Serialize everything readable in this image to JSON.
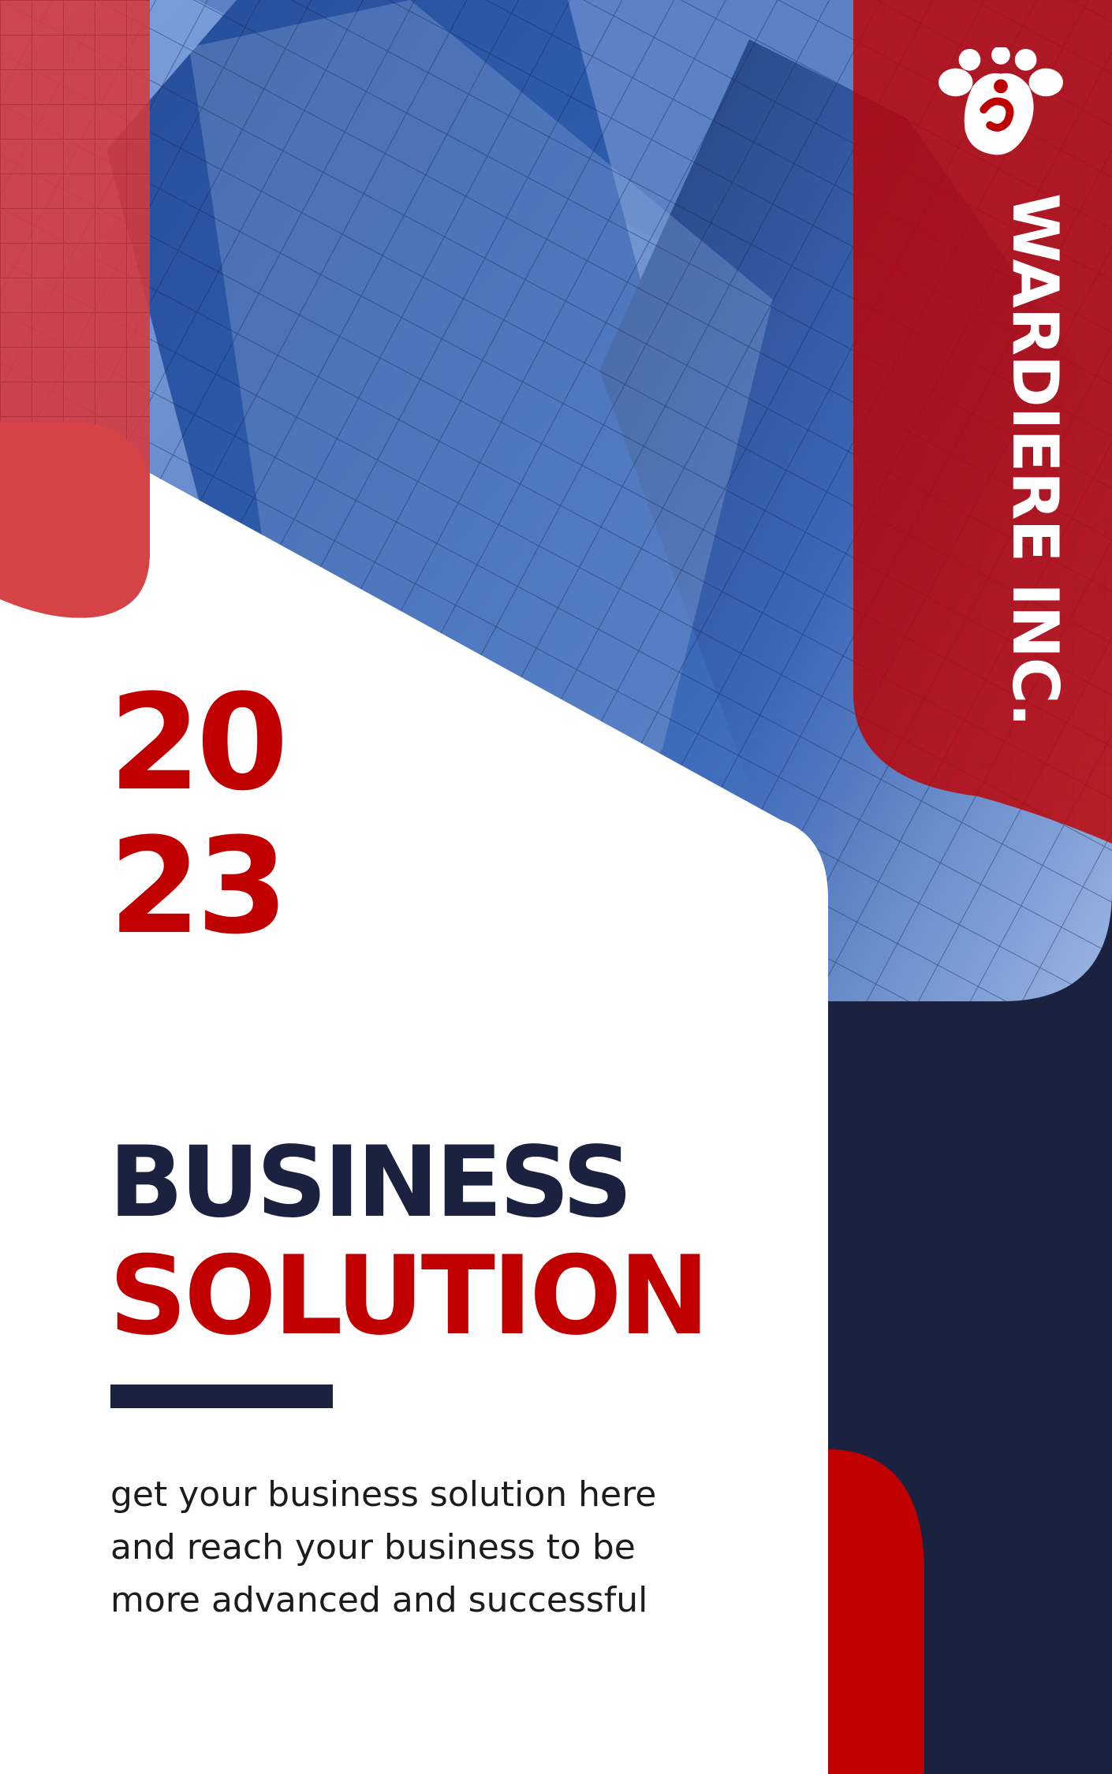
{
  "brand": {
    "name": "WARDIERE INC.",
    "logo_icon": "flower-blob-logo-icon"
  },
  "year": {
    "top": "20",
    "bottom": "23"
  },
  "title": {
    "line1": "BUSINESS",
    "line2": "SOLUTION"
  },
  "tagline": {
    "line1": "get your business solution here",
    "line2": "and reach your business to be",
    "line3": "more advanced and successful"
  },
  "colors": {
    "brand_red": "#c00000",
    "navy": "#1a2240",
    "light_red": "#d6393c",
    "sky_blue": "#6f93d4",
    "white": "#ffffff"
  }
}
